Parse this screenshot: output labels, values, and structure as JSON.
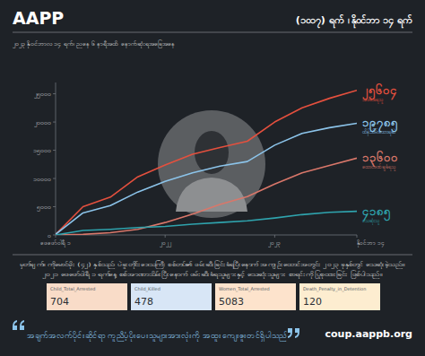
{
  "header": {
    "title": "AAPP",
    "date": "(၁၀၁၇) ရက် ၊ နိုဝင်ဘာ ၁၄ ရက်",
    "subtitle": "၂၀၂၃ နိုဝင်ဘာလ ၁၄ ရက်၊ ညနေ ၆ နာရီအထိ နောက်ဆုံးရအခြေအနေ"
  },
  "chart_data": {
    "type": "line",
    "categories": [
      "ဖေဖော်ဝါရီ ၁",
      null,
      null,
      null,
      "၂၀၂၂",
      null,
      null,
      null,
      "၂၀၂၃",
      null,
      null,
      "နိုဝင်ဘာ ၁၄"
    ],
    "series": [
      {
        "name": "အဖမ်းခံရသူ",
        "color": "#e4503e",
        "values": [
          100,
          5000,
          6700,
          10300,
          12400,
          14300,
          15500,
          16600,
          20000,
          22500,
          24200,
          25604
        ]
      },
      {
        "name": "ထိန်းသိမ်းခံထားရဆဲ",
        "color": "#8cc4ea",
        "values": [
          100,
          3900,
          5200,
          7600,
          9500,
          11000,
          12200,
          13000,
          15900,
          18000,
          19000,
          19785
        ]
      },
      {
        "name": "ထောင်ဒဏ်ချခံရသူ",
        "color": "#d9776a",
        "values": [
          0,
          100,
          400,
          1000,
          2200,
          3700,
          5400,
          6800,
          9000,
          11000,
          12300,
          13600
        ]
      },
      {
        "name": "သေဆုံးသူ",
        "color": "#2fa3ad",
        "values": [
          0,
          800,
          1000,
          1300,
          1500,
          1900,
          2200,
          2500,
          3000,
          3600,
          4000,
          4185
        ]
      }
    ],
    "annotations": [
      "၂၅၆၀၄",
      "၁၉၇၈၅",
      "၁၃၆၀၀",
      "၄၁၈၅"
    ],
    "ylim": [
      0,
      27000
    ],
    "yticks": [
      {
        "value": 0,
        "label": "၀"
      },
      {
        "value": 5000,
        "label": "၅၀၀၀"
      },
      {
        "value": 10000,
        "label": "၁၀၀၀၀"
      },
      {
        "value": 15000,
        "label": "၁၅၀၀၀"
      },
      {
        "value": 20000,
        "label": "၂၀၀၀၀"
      },
      {
        "value": 25000,
        "label": "၂၅၀၀၀"
      }
    ],
    "grid": false
  },
  "note": [
    "မှတ်ချက်။ ကိုမောင်မိုး (၄၂) နှစ်သည် ပဲခူးတိုင်းဒေသကြီး စစ်တပ်၏ ဖမ်းဆီးခြင်းခံရပြီးနောက် အကျဉ်းထောင်အတွင်း ၂၀၂၃ ခုနှစ်တွင် သေဆုံးခဲ့သည်။",
    "၂၀၂၁ ဖေဖော်ဝါရီ ၁ ရက်နေ့ စစ်အာဏာသိမ်းပြီးနောက် ဖမ်းဆီးခံရသူများနှင့် သေဆုံးသူများ စာရင်းကို ပြုစုထားခြင်း ဖြစ်ပါသည်။"
  ],
  "stats": [
    {
      "label": "Child_Total_Arrested",
      "value": 704,
      "color": "#f9dcc8"
    },
    {
      "label": "Child_Killed",
      "value": 478,
      "color": "#d8e6f6"
    },
    {
      "label": "Women_Total_Arrested",
      "value": 5083,
      "color": "#fde3cc"
    },
    {
      "label": "Death_Penalty_in_Detention",
      "value": 120,
      "color": "#fdedd0"
    }
  ],
  "footer": {
    "quote": "အချက်အလက်ပိုင်းဆိုင်ရာ ကူညီပံ့ပိုးပေးသူများအားလုံးကို အထူးကျေးဇူးတင်ရှိပါသည်",
    "url": "coup.aappb.org"
  }
}
